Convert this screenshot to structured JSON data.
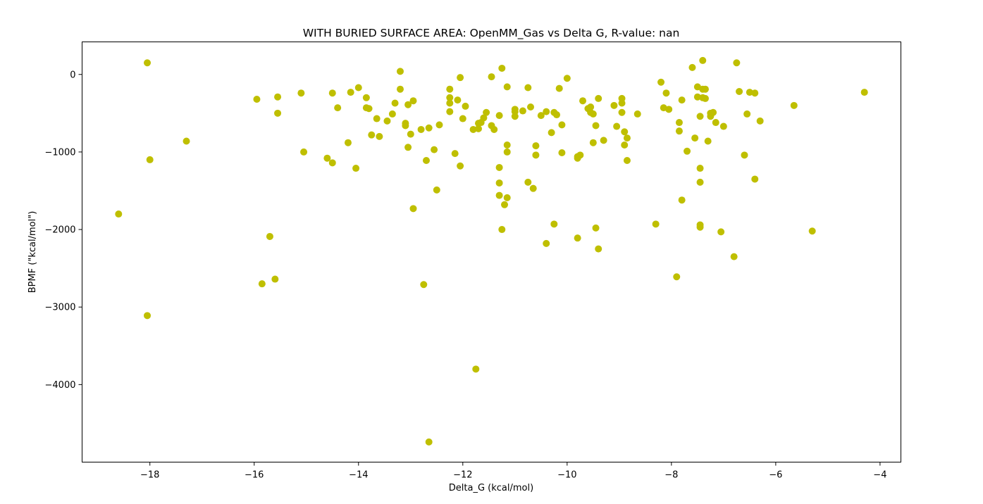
{
  "chart_data": {
    "type": "scatter",
    "title": "WITH BURIED SURFACE AREA: OpenMM_Gas vs Delta G, R-value: nan",
    "xlabel": "Delta_G (kcal/mol)",
    "ylabel": "BPMF (\"kcal/mol\")",
    "xlim": [
      -19.3,
      -3.6
    ],
    "ylim": [
      -5000,
      420
    ],
    "xticks": [
      -18,
      -16,
      -14,
      -12,
      -10,
      -8,
      -6,
      -4
    ],
    "yticks": [
      -4000,
      -3000,
      -2000,
      -1000,
      0
    ],
    "xtick_labels": [
      "−18",
      "−16",
      "−14",
      "−12",
      "−10",
      "−8",
      "−6",
      "−4"
    ],
    "ytick_labels": [
      "−4000",
      "−3000",
      "−2000",
      "−1000",
      "0"
    ],
    "grid": false,
    "marker_color": "#bfbf00",
    "points": [
      [
        -18.6,
        -1800
      ],
      [
        -18.05,
        150
      ],
      [
        -18.0,
        -1100
      ],
      [
        -18.05,
        -3110
      ],
      [
        -17.3,
        -860
      ],
      [
        -15.95,
        -320
      ],
      [
        -15.85,
        -2700
      ],
      [
        -15.7,
        -2090
      ],
      [
        -15.6,
        -2640
      ],
      [
        -15.55,
        -500
      ],
      [
        -15.55,
        -290
      ],
      [
        -15.1,
        -240
      ],
      [
        -15.05,
        -1000
      ],
      [
        -14.6,
        -1080
      ],
      [
        -14.5,
        -240
      ],
      [
        -14.5,
        -1140
      ],
      [
        -14.4,
        -430
      ],
      [
        -14.2,
        -880
      ],
      [
        -14.15,
        -230
      ],
      [
        -14.05,
        -1210
      ],
      [
        -14.0,
        -170
      ],
      [
        -13.85,
        -300
      ],
      [
        -13.85,
        -430
      ],
      [
        -13.8,
        -440
      ],
      [
        -13.75,
        -780
      ],
      [
        -13.65,
        -570
      ],
      [
        -13.6,
        -800
      ],
      [
        -13.45,
        -600
      ],
      [
        -13.35,
        -510
      ],
      [
        -13.3,
        -370
      ],
      [
        -13.2,
        40
      ],
      [
        -13.2,
        -190
      ],
      [
        -13.1,
        -630
      ],
      [
        -13.1,
        -660
      ],
      [
        -13.05,
        -940
      ],
      [
        -13.05,
        -390
      ],
      [
        -13.0,
        -770
      ],
      [
        -12.95,
        -340
      ],
      [
        -12.95,
        -1730
      ],
      [
        -12.8,
        -710
      ],
      [
        -12.75,
        -2710
      ],
      [
        -12.7,
        -1110
      ],
      [
        -12.65,
        -690
      ],
      [
        -12.65,
        -4740
      ],
      [
        -12.55,
        -970
      ],
      [
        -12.5,
        -1490
      ],
      [
        -12.45,
        -650
      ],
      [
        -12.25,
        -190
      ],
      [
        -12.25,
        -300
      ],
      [
        -12.25,
        -370
      ],
      [
        -12.25,
        -480
      ],
      [
        -12.15,
        -1020
      ],
      [
        -12.1,
        -330
      ],
      [
        -12.05,
        -1180
      ],
      [
        -12.05,
        -40
      ],
      [
        -12.0,
        -570
      ],
      [
        -11.95,
        -410
      ],
      [
        -11.8,
        -710
      ],
      [
        -11.75,
        -3800
      ],
      [
        -11.7,
        -630
      ],
      [
        -11.7,
        -700
      ],
      [
        -11.65,
        -620
      ],
      [
        -11.6,
        -560
      ],
      [
        -11.55,
        -490
      ],
      [
        -11.45,
        -30
      ],
      [
        -11.45,
        -660
      ],
      [
        -11.4,
        -710
      ],
      [
        -11.3,
        -530
      ],
      [
        -11.3,
        -1200
      ],
      [
        -11.3,
        -1400
      ],
      [
        -11.3,
        -1560
      ],
      [
        -11.25,
        80
      ],
      [
        -11.25,
        -2000
      ],
      [
        -11.2,
        -1680
      ],
      [
        -11.15,
        -160
      ],
      [
        -11.15,
        -910
      ],
      [
        -11.15,
        -1000
      ],
      [
        -11.15,
        -1590
      ],
      [
        -11.0,
        -480
      ],
      [
        -11.0,
        -450
      ],
      [
        -11.0,
        -540
      ],
      [
        -10.85,
        -470
      ],
      [
        -10.75,
        -170
      ],
      [
        -10.75,
        -1390
      ],
      [
        -10.7,
        -420
      ],
      [
        -10.65,
        -1470
      ],
      [
        -10.6,
        -920
      ],
      [
        -10.6,
        -1040
      ],
      [
        -10.5,
        -530
      ],
      [
        -10.4,
        -480
      ],
      [
        -10.4,
        -2180
      ],
      [
        -10.3,
        -750
      ],
      [
        -10.25,
        -490
      ],
      [
        -10.25,
        -1930
      ],
      [
        -10.2,
        -520
      ],
      [
        -10.15,
        -180
      ],
      [
        -10.1,
        -1010
      ],
      [
        -10.1,
        -650
      ],
      [
        -10.0,
        -50
      ],
      [
        -9.8,
        -1060
      ],
      [
        -9.8,
        -1080
      ],
      [
        -9.8,
        -2110
      ],
      [
        -9.75,
        -1040
      ],
      [
        -9.7,
        -340
      ],
      [
        -9.6,
        -440
      ],
      [
        -9.55,
        -420
      ],
      [
        -9.55,
        -490
      ],
      [
        -9.5,
        -510
      ],
      [
        -9.5,
        -880
      ],
      [
        -9.45,
        -1980
      ],
      [
        -9.45,
        -660
      ],
      [
        -9.4,
        -310
      ],
      [
        -9.4,
        -2250
      ],
      [
        -9.3,
        -850
      ],
      [
        -9.1,
        -400
      ],
      [
        -9.05,
        -670
      ],
      [
        -8.95,
        -310
      ],
      [
        -8.95,
        -370
      ],
      [
        -8.95,
        -490
      ],
      [
        -8.9,
        -910
      ],
      [
        -8.9,
        -740
      ],
      [
        -8.85,
        -820
      ],
      [
        -8.85,
        -1110
      ],
      [
        -8.65,
        -510
      ],
      [
        -8.3,
        -1930
      ],
      [
        -8.2,
        -100
      ],
      [
        -8.15,
        -430
      ],
      [
        -8.1,
        -240
      ],
      [
        -8.05,
        -450
      ],
      [
        -7.9,
        -2610
      ],
      [
        -7.85,
        -620
      ],
      [
        -7.85,
        -730
      ],
      [
        -7.8,
        -1620
      ],
      [
        -7.8,
        -330
      ],
      [
        -7.7,
        -990
      ],
      [
        -7.6,
        90
      ],
      [
        -7.55,
        -820
      ],
      [
        -7.5,
        -160
      ],
      [
        -7.5,
        -290
      ],
      [
        -7.45,
        -1210
      ],
      [
        -7.45,
        -1390
      ],
      [
        -7.45,
        -1940
      ],
      [
        -7.45,
        -1970
      ],
      [
        -7.45,
        -540
      ],
      [
        -7.4,
        180
      ],
      [
        -7.4,
        -190
      ],
      [
        -7.4,
        -300
      ],
      [
        -7.35,
        -190
      ],
      [
        -7.35,
        -310
      ],
      [
        -7.3,
        -860
      ],
      [
        -7.25,
        -540
      ],
      [
        -7.25,
        -500
      ],
      [
        -7.2,
        -490
      ],
      [
        -7.15,
        -620
      ],
      [
        -7.05,
        -2030
      ],
      [
        -7.0,
        -670
      ],
      [
        -6.8,
        -2350
      ],
      [
        -6.75,
        150
      ],
      [
        -6.7,
        -220
      ],
      [
        -6.6,
        -1040
      ],
      [
        -6.55,
        -510
      ],
      [
        -6.5,
        -230
      ],
      [
        -6.4,
        -240
      ],
      [
        -6.4,
        -1350
      ],
      [
        -6.3,
        -600
      ],
      [
        -5.65,
        -400
      ],
      [
        -5.3,
        -2020
      ],
      [
        -4.3,
        -230
      ]
    ]
  }
}
